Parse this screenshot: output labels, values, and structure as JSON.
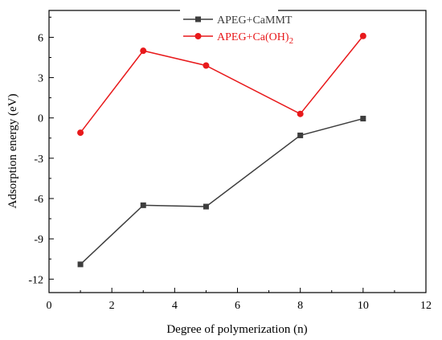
{
  "chart_data": {
    "type": "line",
    "xlabel": "Degree of polymerization (n)",
    "ylabel": "Adsorption energy (eV)",
    "xlim": [
      0,
      12
    ],
    "ylim": [
      -13,
      8
    ],
    "xticks": [
      0,
      2,
      4,
      6,
      8,
      10,
      12
    ],
    "yticks": [
      -12,
      -9,
      -6,
      -3,
      0,
      3,
      6
    ],
    "grid": false,
    "legend_position": "top-center",
    "series": [
      {
        "name": "APEG+CaMMT",
        "name_parts": [
          {
            "t": "APEG+CaMMT",
            "sub": false
          }
        ],
        "marker": "square",
        "color": "#3d3d3d",
        "x": [
          1,
          3,
          5,
          8,
          10
        ],
        "y": [
          -10.9,
          -6.5,
          -6.6,
          -1.3,
          -0.05
        ]
      },
      {
        "name": "APEG+Ca(OH)2",
        "name_parts": [
          {
            "t": "APEG+Ca(OH)",
            "sub": false
          },
          {
            "t": "2",
            "sub": true
          }
        ],
        "marker": "circle",
        "color": "#e8191b",
        "x": [
          1,
          3,
          5,
          8,
          10
        ],
        "y": [
          -1.1,
          5.0,
          3.9,
          0.3,
          6.1
        ]
      }
    ]
  }
}
